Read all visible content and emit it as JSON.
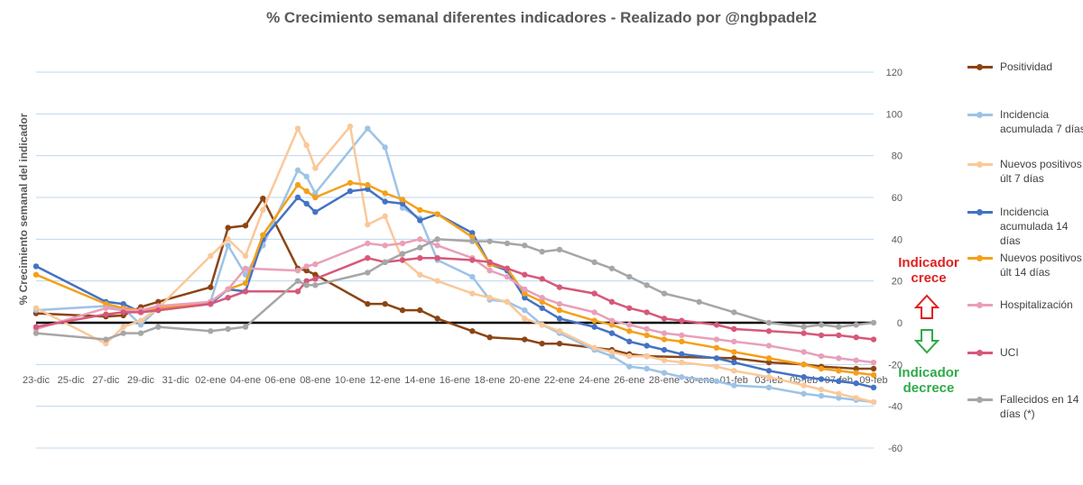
{
  "chart_data": {
    "type": "line",
    "title": "% Crecimiento semanal diferentes indicadores - Realizado por @ngbpadel2",
    "xlabel": "",
    "ylabel": "% Crecimiento semanal del indicador",
    "ylim": [
      -60,
      120
    ],
    "yticks": [
      120,
      100,
      80,
      60,
      40,
      20,
      0,
      -20,
      -40,
      -60
    ],
    "grid": true,
    "legend_position": "right",
    "x_tick_labels": [
      "23-dic",
      "25-dic",
      "27-dic",
      "29-dic",
      "31-dic",
      "02-ene",
      "04-ene",
      "06-ene",
      "08-ene",
      "10-ene",
      "12-ene",
      "14-ene",
      "16-ene",
      "18-ene",
      "20-ene",
      "22-ene",
      "24-ene",
      "26-ene",
      "28-ene",
      "30-ene",
      "01-feb",
      "03-feb",
      "05-feb",
      "07-feb",
      "09-feb"
    ],
    "x_range_days": [
      0,
      48
    ],
    "series": [
      {
        "name": "Positividad",
        "color": "#8B4513",
        "x": [
          0,
          4,
          5,
          6,
          7,
          10,
          11,
          12,
          13,
          15,
          15.5,
          16,
          19,
          20,
          21,
          22,
          23,
          25,
          26,
          28,
          29,
          30,
          33,
          34,
          35,
          40,
          42,
          44,
          45,
          47,
          48
        ],
        "y": [
          4.5,
          3,
          3.5,
          7.5,
          10,
          17,
          45.5,
          46.5,
          59.5,
          26,
          25,
          23,
          9,
          9,
          6,
          6,
          2,
          -4,
          -7,
          -8,
          -10,
          -10,
          -13,
          -15,
          -16,
          -17,
          -19,
          -20,
          -21,
          -22,
          -22
        ]
      },
      {
        "name": "Incidencia acumulada 7 días",
        "color": "#9DC3E6",
        "x": [
          0,
          4,
          5,
          6,
          7,
          10,
          11,
          12,
          13,
          15,
          15.5,
          16,
          19,
          20,
          21,
          22,
          23,
          25,
          26,
          27,
          28,
          29,
          30,
          32,
          33,
          34,
          35,
          36,
          37,
          39,
          40,
          42,
          44,
          45,
          46,
          47,
          48
        ],
        "y": [
          6,
          8,
          7,
          -1,
          7,
          10,
          37,
          23,
          37,
          73,
          70,
          62,
          93,
          84,
          55,
          50,
          30,
          22,
          11,
          10,
          6,
          -1,
          -5,
          -13,
          -16,
          -21,
          -22,
          -24,
          -26,
          -28,
          -30,
          -31,
          -34,
          -35,
          -36,
          -37,
          -38
        ]
      },
      {
        "name": "Nuevos positivos últ 7 días",
        "color": "#FAC899",
        "x": [
          0,
          4,
          5,
          6,
          7,
          10,
          11,
          12,
          13,
          15,
          15.5,
          16,
          18,
          19,
          20,
          21,
          22,
          23,
          25,
          26,
          27,
          28,
          29,
          30,
          32,
          33,
          34,
          35,
          36,
          37,
          39,
          40,
          42,
          44,
          45,
          46,
          47,
          48
        ],
        "y": [
          7,
          -10,
          -2,
          1,
          7,
          32,
          40,
          32,
          54,
          93,
          85,
          74,
          94,
          47,
          51,
          30,
          23,
          20,
          14,
          12,
          10,
          2,
          -1,
          -4,
          -12,
          -14,
          -16,
          -16,
          -18,
          -19,
          -21,
          -23,
          -26,
          -30,
          -32,
          -34,
          -36,
          -38
        ]
      },
      {
        "name": "Incidencia acumulada 14 días",
        "color": "#4472C4",
        "x": [
          0,
          4,
          5,
          6,
          7,
          10,
          11,
          12,
          13,
          15,
          15.5,
          16,
          18,
          19,
          20,
          21,
          22,
          23,
          25,
          26,
          27,
          28,
          29,
          30,
          32,
          33,
          34,
          35,
          36,
          37,
          39,
          40,
          42,
          44,
          45,
          46,
          47,
          48
        ],
        "y": [
          27,
          10,
          9,
          5,
          6,
          9,
          16,
          15,
          40,
          60,
          57,
          53,
          63,
          64,
          58,
          57,
          49,
          52,
          43,
          28,
          25,
          12,
          7,
          2,
          -2,
          -5,
          -9,
          -11,
          -13,
          -15,
          -17,
          -19,
          -23,
          -26,
          -27,
          -28,
          -29,
          -31
        ]
      },
      {
        "name": "Nuevos positivos últ 14 días",
        "color": "#F4A01A",
        "x": [
          0,
          4,
          5,
          6,
          7,
          10,
          11,
          12,
          13,
          15,
          15.5,
          16,
          18,
          19,
          20,
          21,
          22,
          23,
          25,
          26,
          27,
          28,
          29,
          30,
          32,
          33,
          34,
          35,
          36,
          37,
          39,
          40,
          42,
          44,
          45,
          46,
          47,
          48
        ],
        "y": [
          23,
          9,
          7,
          6,
          7,
          10,
          16,
          19,
          42,
          66,
          63,
          60,
          67,
          66,
          62,
          59,
          54,
          52,
          41,
          28,
          26,
          14,
          10,
          6,
          1,
          -1,
          -4,
          -6,
          -8,
          -9,
          -12,
          -14,
          -17,
          -20,
          -22,
          -23,
          -24,
          -25
        ]
      },
      {
        "name": "Hospitalización",
        "color": "#E8A0B8",
        "x": [
          0,
          4,
          5,
          6,
          7,
          10,
          11,
          12,
          15,
          15.5,
          16,
          19,
          20,
          21,
          22,
          23,
          25,
          26,
          27,
          28,
          29,
          30,
          32,
          33,
          34,
          35,
          36,
          37,
          39,
          40,
          42,
          44,
          45,
          46,
          47,
          48
        ],
        "y": [
          -3,
          7,
          6,
          6,
          8,
          10,
          16,
          26,
          25,
          27,
          28,
          38,
          37,
          38,
          40,
          37,
          31,
          25,
          22,
          16,
          12,
          9,
          5,
          1,
          -1,
          -3,
          -5,
          -6,
          -8,
          -9,
          -11,
          -14,
          -16,
          -17,
          -18,
          -19
        ]
      },
      {
        "name": "UCI",
        "color": "#D6587A",
        "x": [
          0,
          4,
          5,
          6,
          7,
          10,
          11,
          12,
          15,
          15.5,
          16,
          19,
          20,
          21,
          22,
          23,
          25,
          26,
          27,
          28,
          29,
          30,
          32,
          33,
          34,
          35,
          36,
          37,
          39,
          40,
          42,
          44,
          45,
          46,
          47,
          48
        ],
        "y": [
          -2,
          4,
          5,
          5,
          6,
          9,
          12,
          15,
          15,
          20,
          21,
          31,
          29,
          30,
          31,
          31,
          30,
          29,
          26,
          23,
          21,
          17,
          14,
          10,
          7,
          5,
          2,
          1,
          -1,
          -3,
          -4,
          -5,
          -6,
          -6,
          -7,
          -8
        ]
      },
      {
        "name": "Fallecidos en 14 días (*)",
        "color": "#A6A6A6",
        "x": [
          0,
          4,
          5,
          6,
          7,
          10,
          11,
          12,
          15,
          15.5,
          16,
          19,
          20,
          21,
          22,
          23,
          25,
          26,
          27,
          28,
          29,
          30,
          32,
          33,
          34,
          35,
          36,
          38,
          40,
          42,
          44,
          45,
          46,
          47,
          48
        ],
        "y": [
          -5,
          -8,
          -5,
          -5,
          -2,
          -4,
          -3,
          -2,
          20,
          18,
          18,
          24,
          29,
          33,
          36,
          40,
          39,
          39,
          38,
          37,
          34,
          35,
          29,
          26,
          22,
          18,
          14,
          10,
          5,
          0,
          -2,
          -1,
          -2,
          -1,
          0
        ]
      }
    ]
  },
  "legend": [
    {
      "label": "Positividad"
    },
    {
      "label": "Incidencia acumulada 7 días"
    },
    {
      "label": "Nuevos positivos últ 7 días"
    },
    {
      "label": "Incidencia acumulada 14 días"
    },
    {
      "label": "Nuevos positivos últ 14 días"
    },
    {
      "label": "Hospitalización"
    },
    {
      "label": "UCI"
    },
    {
      "label": "Fallecidos en 14 días (*)"
    }
  ],
  "annotations": {
    "up_text": "Indicador crece",
    "down_text": "Indicador decrece",
    "up_color": "#E02020",
    "down_color": "#2EAA4A"
  }
}
